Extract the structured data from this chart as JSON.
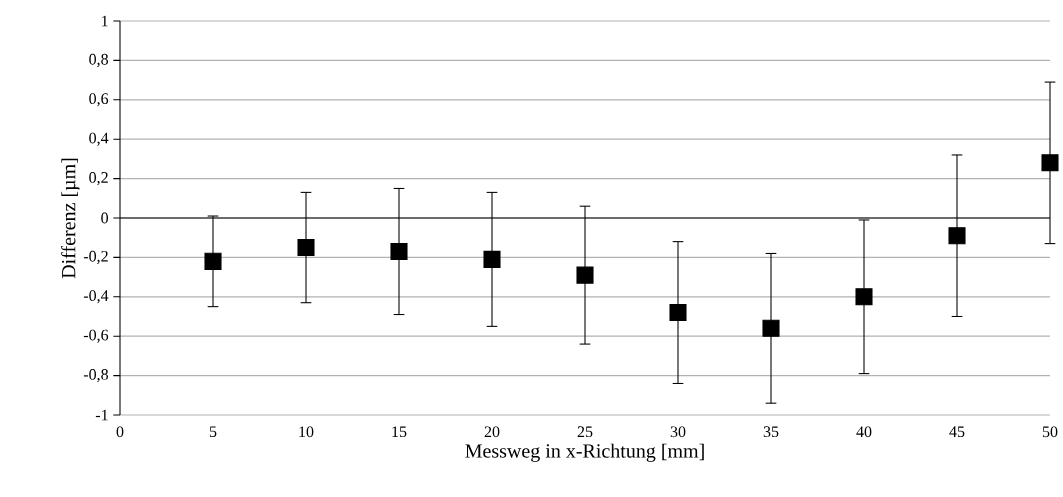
{
  "chart_data": {
    "type": "scatter",
    "xlabel": "Messweg in x-Richtung [mm]",
    "ylabel": "Differenz [µm]",
    "x": [
      5,
      10,
      15,
      20,
      25,
      30,
      35,
      40,
      45,
      50
    ],
    "values": [
      -0.22,
      -0.15,
      -0.17,
      -0.21,
      -0.29,
      -0.48,
      -0.56,
      -0.4,
      -0.09,
      0.28
    ],
    "errors": [
      0.23,
      0.28,
      0.32,
      0.34,
      0.35,
      0.36,
      0.38,
      0.39,
      0.41,
      0.41
    ],
    "color": "#000000",
    "marker": "square",
    "grid": "y",
    "xlim": [
      0,
      50
    ],
    "ylim": [
      -1,
      1
    ],
    "xticks": [
      0,
      5,
      10,
      15,
      20,
      25,
      30,
      35,
      40,
      45,
      50
    ],
    "yticks": [
      {
        "value": -1,
        "label": "-1"
      },
      {
        "value": -0.8,
        "label": "-0,8"
      },
      {
        "value": -0.6,
        "label": "-0,6"
      },
      {
        "value": -0.4,
        "label": "-0,4"
      },
      {
        "value": -0.2,
        "label": "-0,2"
      },
      {
        "value": 0,
        "label": "0"
      },
      {
        "value": 0.2,
        "label": "0,2"
      },
      {
        "value": 0.4,
        "label": "0,4"
      },
      {
        "value": 0.6,
        "label": "0,6"
      },
      {
        "value": 0.8,
        "label": "0,8"
      },
      {
        "value": 1,
        "label": "1"
      }
    ]
  }
}
